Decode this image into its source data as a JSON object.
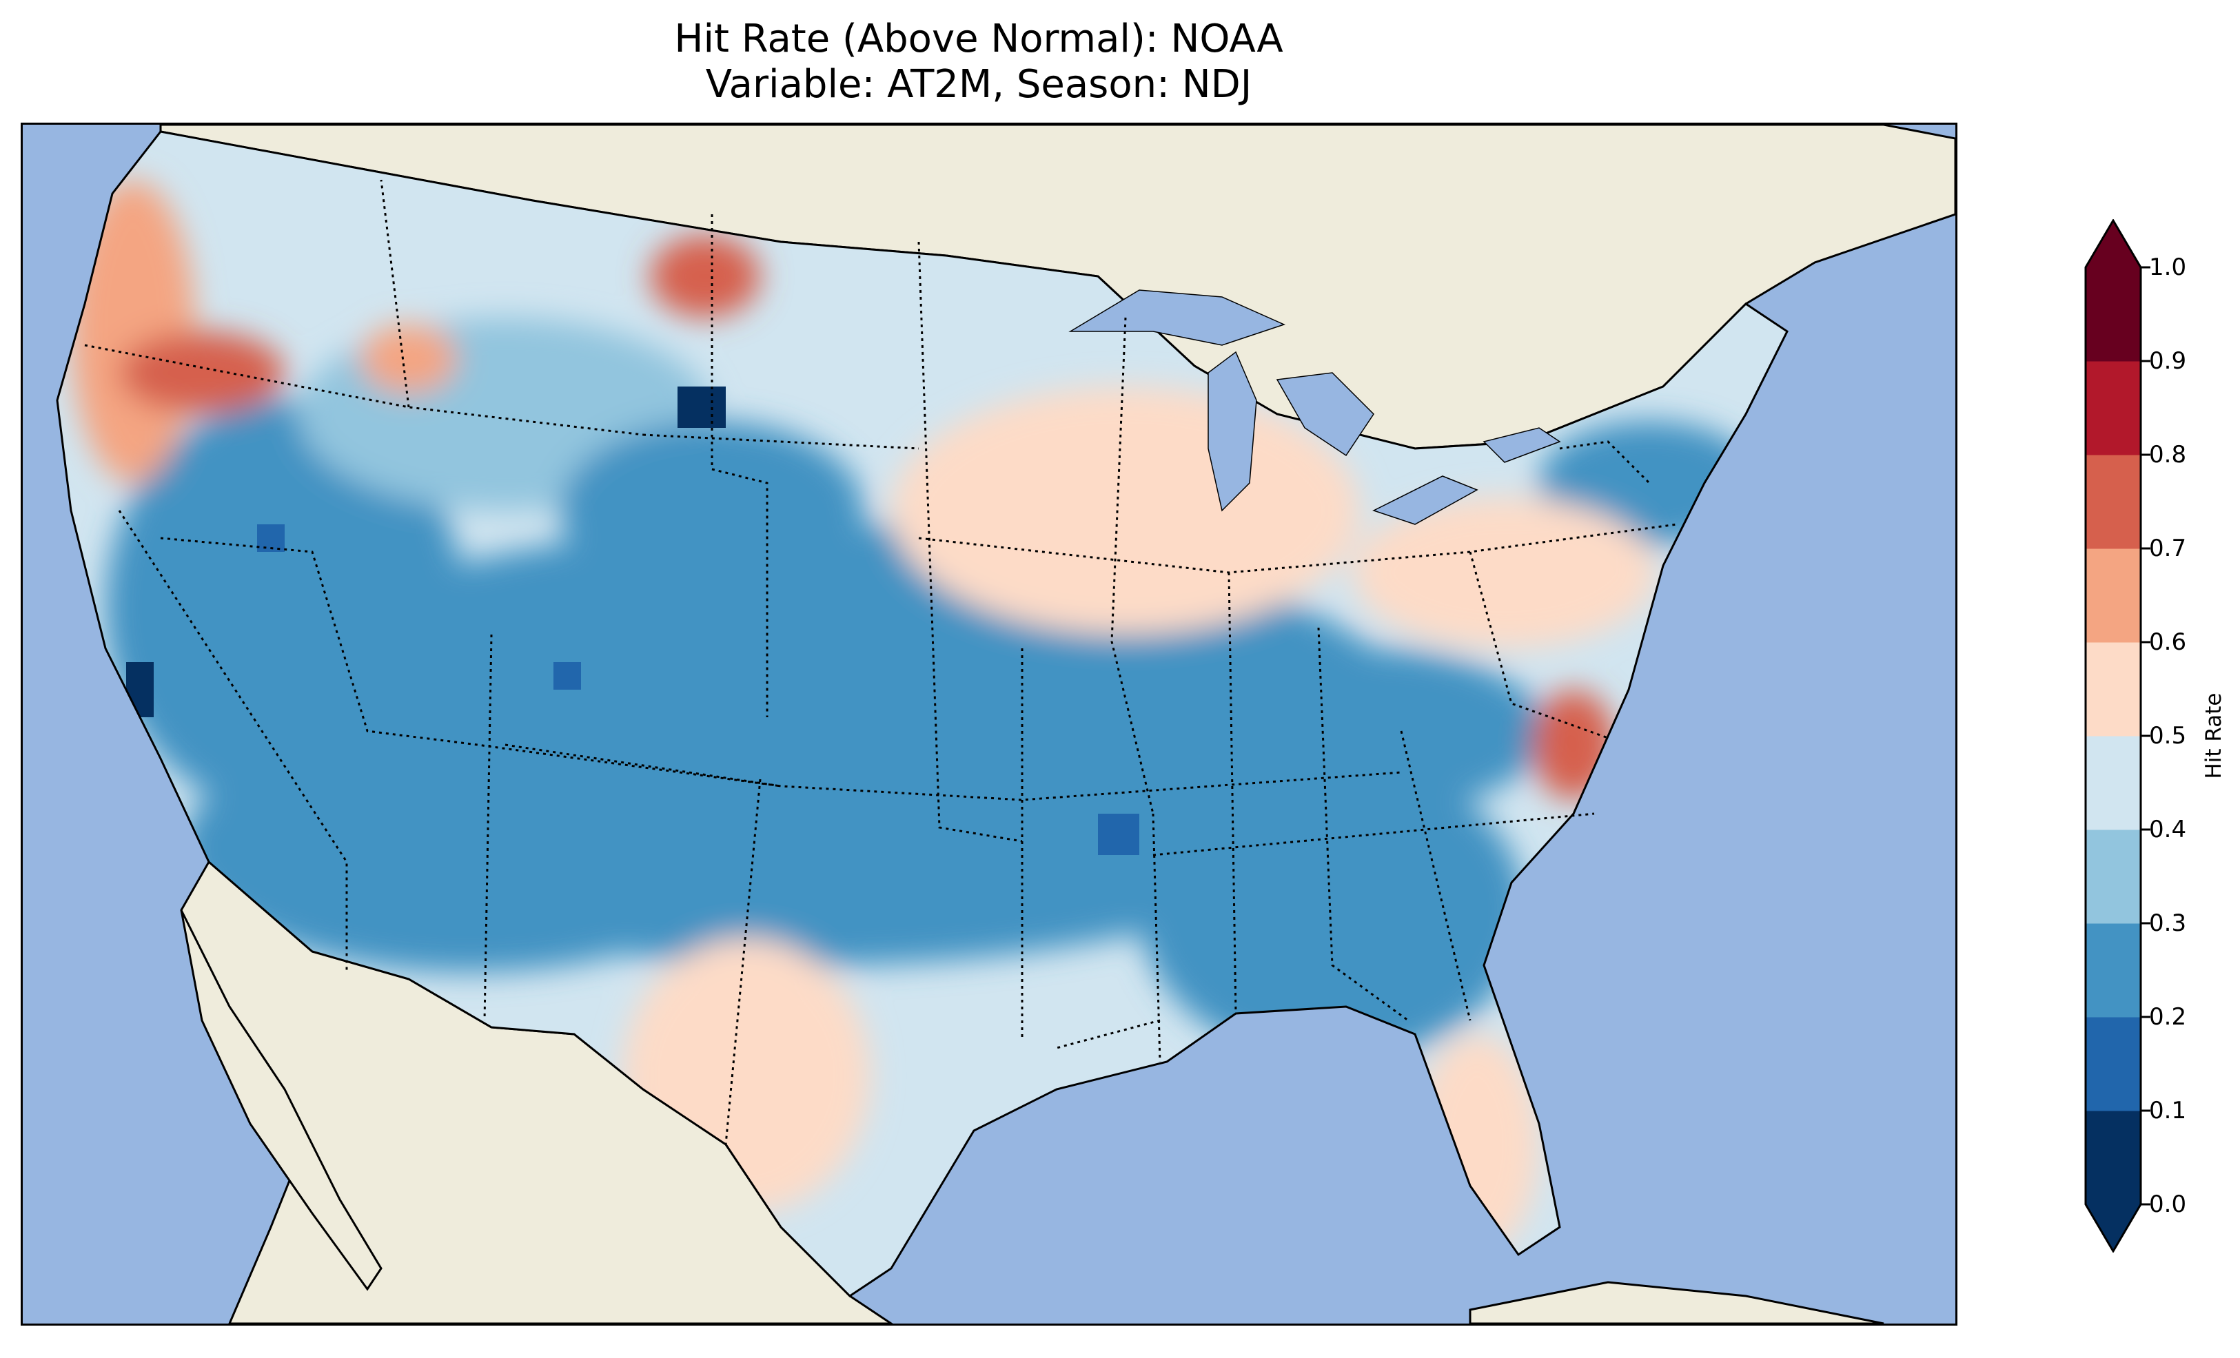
{
  "title": {
    "line1": "Hit Rate (Above Normal): NOAA",
    "line2": "Variable: AT2M, Season: NDJ"
  },
  "colorbar": {
    "label": "Hit Rate",
    "ticks": [
      "0.0",
      "0.1",
      "0.2",
      "0.3",
      "0.4",
      "0.5",
      "0.6",
      "0.7",
      "0.8",
      "0.9",
      "1.0"
    ],
    "colors": [
      "#053061",
      "#2166ac",
      "#4393c3",
      "#92c5de",
      "#d1e5f0",
      "#fddbc7",
      "#f4a582",
      "#d6604d",
      "#b2182b",
      "#67001f"
    ],
    "over_color": "#67001f",
    "under_color": "#053061"
  },
  "map": {
    "ocean_color": "#97b6e1",
    "land_color": "#efecdc",
    "regions": [
      {
        "name": "pacific-northwest-coast",
        "value": 0.65
      },
      {
        "name": "oregon-interior",
        "value": 0.75
      },
      {
        "name": "northern-rockies",
        "value": 0.45
      },
      {
        "name": "montana-north",
        "value": 0.75
      },
      {
        "name": "wyoming-north",
        "value": 0.05
      },
      {
        "name": "great-basin",
        "value": 0.25
      },
      {
        "name": "california-central",
        "value": 0.05
      },
      {
        "name": "southwest",
        "value": 0.25
      },
      {
        "name": "new-mexico-west-texas",
        "value": 0.55
      },
      {
        "name": "central-plains",
        "value": 0.25
      },
      {
        "name": "upper-midwest",
        "value": 0.55
      },
      {
        "name": "ohio-valley",
        "value": 0.25
      },
      {
        "name": "southeast",
        "value": 0.25
      },
      {
        "name": "florida",
        "value": 0.55
      },
      {
        "name": "north-carolina-coast",
        "value": 0.75
      },
      {
        "name": "new-england",
        "value": 0.25
      },
      {
        "name": "mid-atlantic",
        "value": 0.55
      }
    ]
  }
}
